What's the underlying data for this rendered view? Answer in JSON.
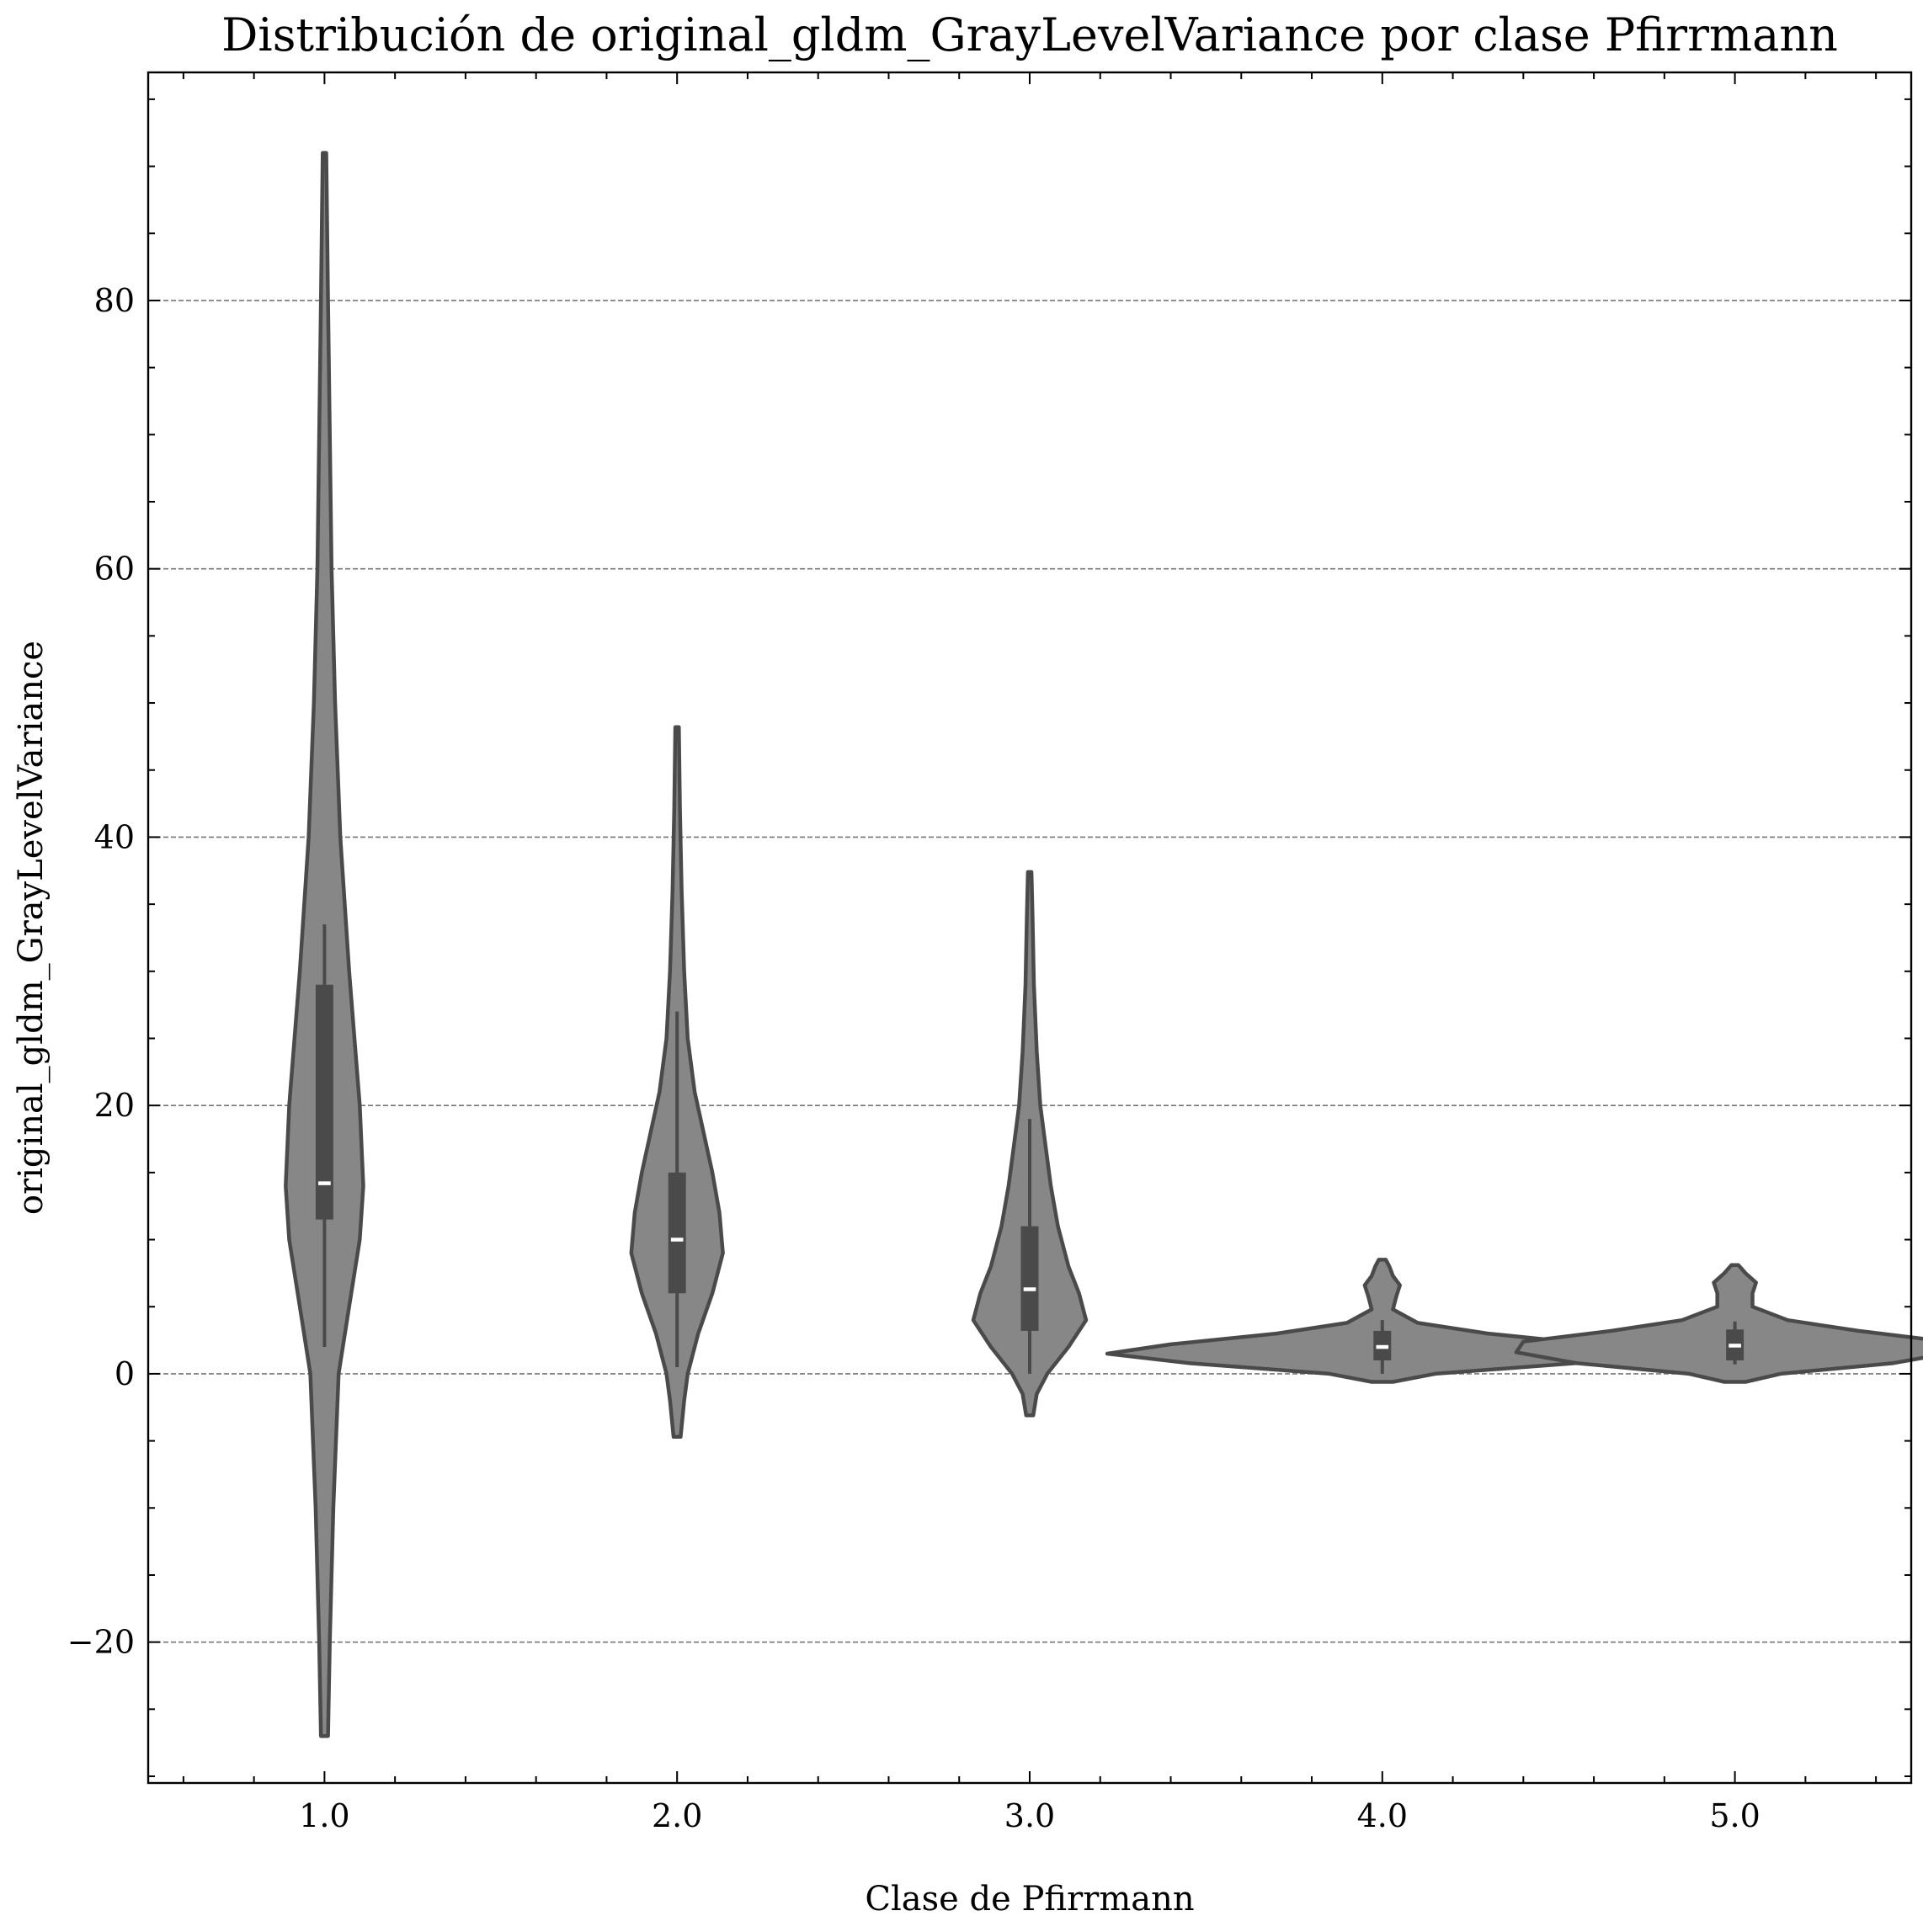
{
  "chart_data": {
    "type": "violin",
    "title": "Distribución de original_gldm_GrayLevelVariance por clase Pfirrmann",
    "xlabel": "Clase de Pfirrmann",
    "ylabel": "original_gldm_GrayLevelVariance",
    "categories": [
      "1.0",
      "2.0",
      "3.0",
      "4.0",
      "5.0"
    ],
    "xlim": [
      0.5,
      5.5
    ],
    "ylim": [
      -30.5,
      97
    ],
    "yticks": [
      -20,
      0,
      20,
      40,
      60,
      80
    ],
    "ytick_labels": [
      "−20",
      "0",
      "20",
      "40",
      "60",
      "80"
    ],
    "grid": "y",
    "colors": {
      "violin_fill": "#878787",
      "violin_edge": "#4a4a4a",
      "box": "#4a4a4a",
      "median": "#ffffff"
    },
    "series": [
      {
        "category": "1.0",
        "median": 14.2,
        "q1": 11.5,
        "q3": 29.0,
        "whisker_low": 2.0,
        "whisker_high": 33.5,
        "range": [
          -27.0,
          91.0
        ],
        "density": [
          [
            -27,
            0.01
          ],
          [
            -20,
            0.015
          ],
          [
            -10,
            0.025
          ],
          [
            0,
            0.04
          ],
          [
            5,
            0.07
          ],
          [
            10,
            0.1
          ],
          [
            14,
            0.11
          ],
          [
            20,
            0.1
          ],
          [
            30,
            0.07
          ],
          [
            40,
            0.045
          ],
          [
            50,
            0.03
          ],
          [
            60,
            0.02
          ],
          [
            70,
            0.015
          ],
          [
            80,
            0.01
          ],
          [
            91,
            0.005
          ]
        ]
      },
      {
        "category": "2.0",
        "median": 10.0,
        "q1": 6.0,
        "q3": 15.0,
        "whisker_low": 0.5,
        "whisker_high": 27.0,
        "range": [
          -4.7,
          48.2
        ],
        "density": [
          [
            -4.7,
            0.01
          ],
          [
            -2,
            0.02
          ],
          [
            0,
            0.03
          ],
          [
            3,
            0.06
          ],
          [
            6,
            0.1
          ],
          [
            9,
            0.13
          ],
          [
            12,
            0.12
          ],
          [
            15,
            0.1
          ],
          [
            18,
            0.075
          ],
          [
            21,
            0.05
          ],
          [
            25,
            0.03
          ],
          [
            30,
            0.02
          ],
          [
            36,
            0.013
          ],
          [
            42,
            0.008
          ],
          [
            48.2,
            0.005
          ]
        ]
      },
      {
        "category": "3.0",
        "median": 6.3,
        "q1": 3.2,
        "q3": 11.0,
        "whisker_low": 0.0,
        "whisker_high": 19.0,
        "range": [
          -3.1,
          37.4
        ],
        "density": [
          [
            -3.1,
            0.01
          ],
          [
            -1.5,
            0.02
          ],
          [
            0,
            0.05
          ],
          [
            2,
            0.11
          ],
          [
            4,
            0.16
          ],
          [
            6,
            0.14
          ],
          [
            8,
            0.11
          ],
          [
            11,
            0.08
          ],
          [
            14,
            0.06
          ],
          [
            17,
            0.045
          ],
          [
            20,
            0.03
          ],
          [
            24,
            0.02
          ],
          [
            29,
            0.012
          ],
          [
            34,
            0.008
          ],
          [
            37.4,
            0.005
          ]
        ]
      },
      {
        "category": "4.0",
        "median": 2.0,
        "q1": 1.0,
        "q3": 3.2,
        "whisker_low": 0.0,
        "whisker_high": 4.0,
        "range": [
          -0.6,
          8.5
        ],
        "density": [
          [
            -0.6,
            0.03
          ],
          [
            0,
            0.15
          ],
          [
            0.8,
            0.55
          ],
          [
            1.5,
            0.78
          ],
          [
            2.2,
            0.6
          ],
          [
            3,
            0.3
          ],
          [
            3.8,
            0.1
          ],
          [
            4.8,
            0.03
          ],
          [
            5.8,
            0.04
          ],
          [
            6.6,
            0.05
          ],
          [
            7.3,
            0.03
          ],
          [
            8.0,
            0.02
          ],
          [
            8.5,
            0.01
          ]
        ]
      },
      {
        "category": "5.0",
        "median": 2.1,
        "q1": 1.0,
        "q3": 3.3,
        "whisker_low": 0.7,
        "whisker_high": 3.9,
        "range": [
          -0.6,
          8.1
        ],
        "density": [
          [
            -0.6,
            0.03
          ],
          [
            0,
            0.13
          ],
          [
            0.8,
            0.45
          ],
          [
            1.6,
            0.62
          ],
          [
            2.4,
            0.6
          ],
          [
            3.2,
            0.35
          ],
          [
            4.0,
            0.15
          ],
          [
            5.0,
            0.05
          ],
          [
            6.0,
            0.05
          ],
          [
            6.8,
            0.06
          ],
          [
            7.5,
            0.03
          ],
          [
            8.1,
            0.01
          ]
        ]
      }
    ]
  }
}
